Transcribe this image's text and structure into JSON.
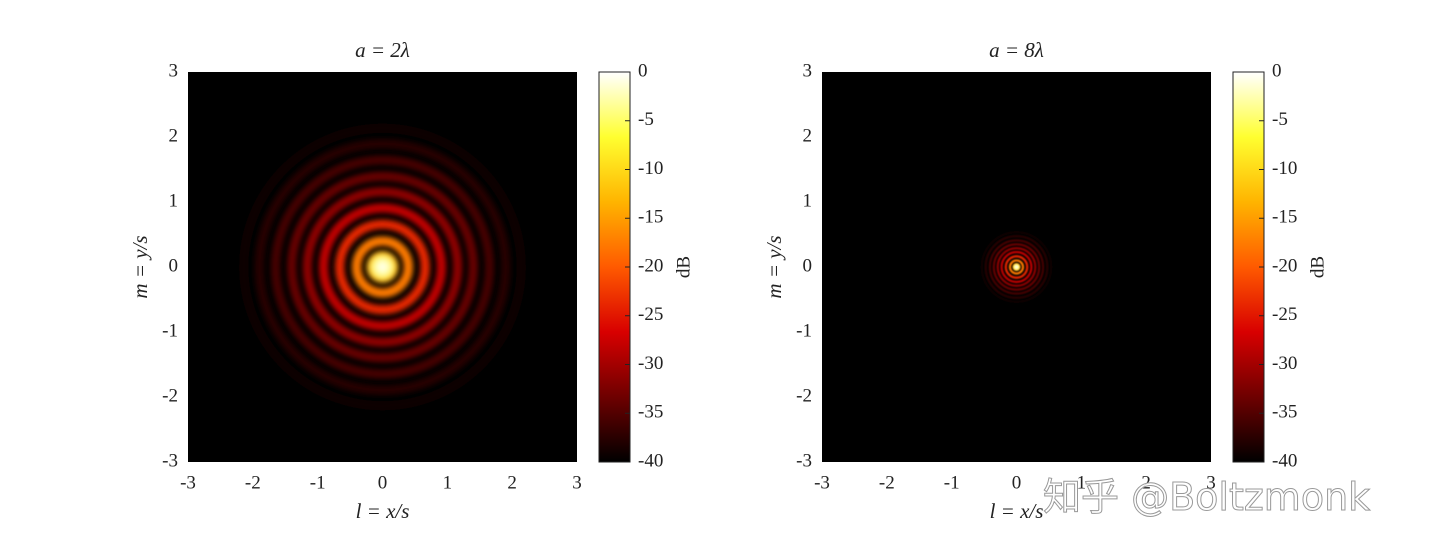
{
  "chart_data": [
    {
      "type": "heatmap",
      "title": "a = 2λ",
      "xlabel": "l = x/s",
      "ylabel": "m = y/s",
      "xlim": [
        -3,
        3
      ],
      "ylim": [
        -3,
        3
      ],
      "xticks": [
        -3,
        -2,
        -1,
        0,
        1,
        2,
        3
      ],
      "yticks": [
        -3,
        -2,
        -1,
        0,
        1,
        2,
        3
      ],
      "rings": [
        {
          "r": 0,
          "db": 0
        },
        {
          "r": 0.4,
          "db": -17.6
        },
        {
          "r": 0.66,
          "db": -23.8
        },
        {
          "r": 0.91,
          "db": -28.1
        },
        {
          "r": 1.16,
          "db": -31.3
        },
        {
          "r": 1.4,
          "db": -33.8
        },
        {
          "r": 1.65,
          "db": -35.9
        },
        {
          "r": 1.9,
          "db": -37.7
        },
        {
          "r": 2.14,
          "db": -39.3
        }
      ],
      "colorbar": {
        "label": "dB",
        "lim": [
          -40,
          0
        ],
        "ticks": [
          0,
          -5,
          -10,
          -15,
          -20,
          -25,
          -30,
          -35,
          -40
        ]
      },
      "colormap": [
        "#000000",
        "#6e0000",
        "#d80000",
        "#ff5a00",
        "#ffb400",
        "#ffff30",
        "#ffffff"
      ]
    },
    {
      "type": "heatmap",
      "title": "a = 8λ",
      "xlabel": "l = x/s",
      "ylabel": "m = y/s",
      "xlim": [
        -3,
        3
      ],
      "ylim": [
        -3,
        3
      ],
      "xticks": [
        -3,
        -2,
        -1,
        0,
        1,
        2,
        3
      ],
      "yticks": [
        -3,
        -2,
        -1,
        0,
        1,
        2,
        3
      ],
      "rings": [
        {
          "r": 0,
          "db": 0
        },
        {
          "r": 0.1,
          "db": -17.6
        },
        {
          "r": 0.165,
          "db": -23.8
        },
        {
          "r": 0.23,
          "db": -28.1
        },
        {
          "r": 0.29,
          "db": -31.3
        },
        {
          "r": 0.35,
          "db": -33.8
        },
        {
          "r": 0.41,
          "db": -35.9
        },
        {
          "r": 0.475,
          "db": -37.7
        },
        {
          "r": 0.535,
          "db": -39.3
        }
      ],
      "colorbar": {
        "label": "dB",
        "lim": [
          -40,
          0
        ],
        "ticks": [
          0,
          -5,
          -10,
          -15,
          -20,
          -25,
          -30,
          -35,
          -40
        ]
      },
      "colormap": [
        "#000000",
        "#6e0000",
        "#d80000",
        "#ff5a00",
        "#ffb400",
        "#ffff30",
        "#ffffff"
      ]
    }
  ],
  "watermark": "知乎 @Boltzmonk"
}
